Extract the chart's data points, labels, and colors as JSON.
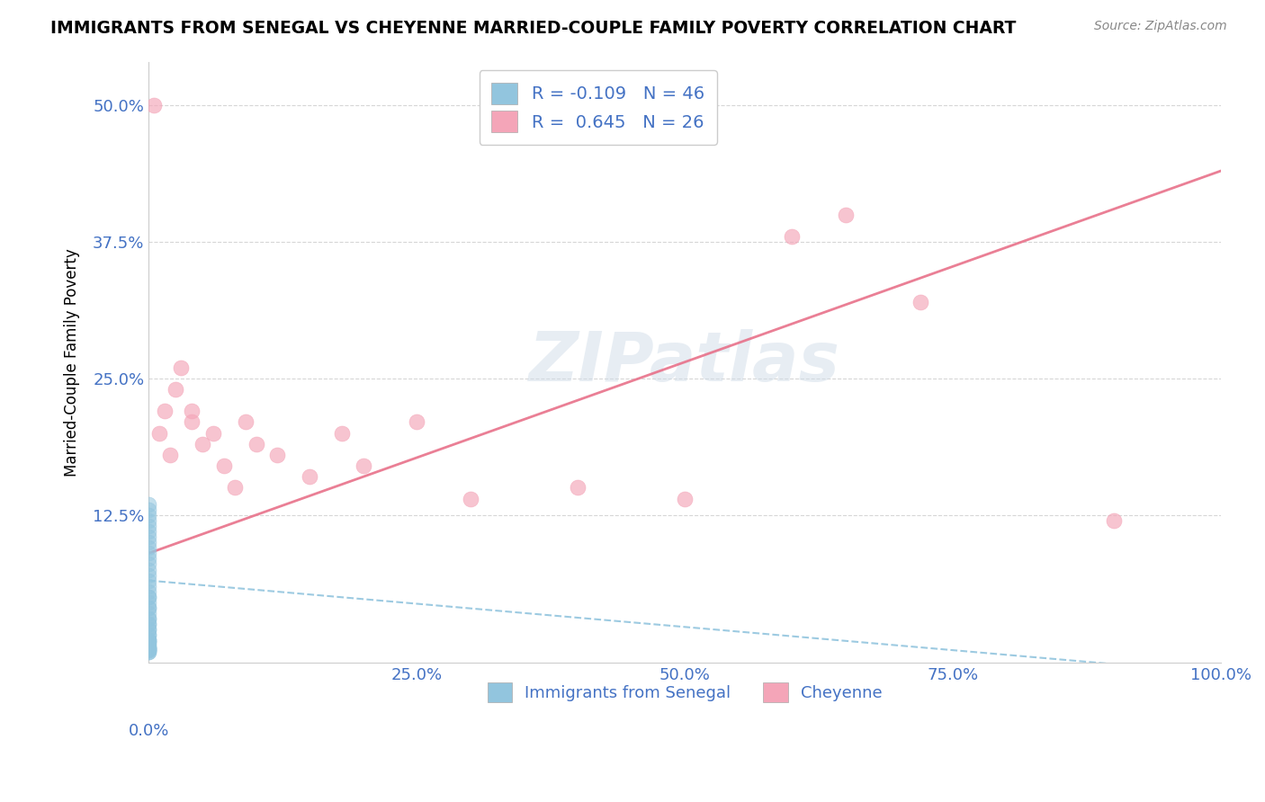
{
  "title": "IMMIGRANTS FROM SENEGAL VS CHEYENNE MARRIED-COUPLE FAMILY POVERTY CORRELATION CHART",
  "source": "Source: ZipAtlas.com",
  "ylabel": "Married-Couple Family Poverty",
  "legend_label1": "Immigrants from Senegal",
  "legend_label2": "Cheyenne",
  "R1": -0.109,
  "N1": 46,
  "R2": 0.645,
  "N2": 26,
  "color1": "#92c5de",
  "color2": "#f4a5b8",
  "trendline1_color": "#92c5de",
  "trendline2_color": "#e8718a",
  "xlim": [
    0.0,
    1.0
  ],
  "ylim": [
    -0.01,
    0.54
  ],
  "xtick_positions": [
    0.0,
    0.25,
    0.5,
    0.75,
    1.0
  ],
  "xtick_labels": [
    "0.0%",
    "25.0%",
    "50.0%",
    "75.0%",
    "100.0%"
  ],
  "ytick_positions": [
    0.125,
    0.25,
    0.375,
    0.5
  ],
  "ytick_labels": [
    "12.5%",
    "25.0%",
    "37.5%",
    "50.0%"
  ],
  "watermark": "ZIPatlas",
  "background_color": "#ffffff",
  "senegal_x": [
    0.0,
    0.0,
    0.0,
    0.0,
    0.0,
    0.0,
    0.0,
    0.0,
    0.0,
    0.0,
    0.0,
    0.0,
    0.0,
    0.0,
    0.0,
    0.0,
    0.0,
    0.0,
    0.0,
    0.0,
    0.0,
    0.0,
    0.0,
    0.0,
    0.0,
    0.0,
    0.0,
    0.0,
    0.0,
    0.0,
    0.0,
    0.0,
    0.0,
    0.0,
    0.0,
    0.0,
    0.0,
    0.0,
    0.0,
    0.0,
    0.0,
    0.0,
    0.0,
    0.0,
    0.0,
    0.0
  ],
  "senegal_y": [
    0.135,
    0.13,
    0.125,
    0.12,
    0.115,
    0.11,
    0.105,
    0.1,
    0.095,
    0.09,
    0.085,
    0.08,
    0.075,
    0.07,
    0.065,
    0.06,
    0.055,
    0.05,
    0.05,
    0.045,
    0.04,
    0.04,
    0.035,
    0.03,
    0.03,
    0.025,
    0.025,
    0.02,
    0.02,
    0.015,
    0.015,
    0.01,
    0.01,
    0.01,
    0.008,
    0.008,
    0.005,
    0.005,
    0.003,
    0.003,
    0.002,
    0.002,
    0.001,
    0.001,
    0.0,
    0.0
  ],
  "cheyenne_x": [
    0.005,
    0.01,
    0.015,
    0.02,
    0.025,
    0.03,
    0.04,
    0.04,
    0.05,
    0.06,
    0.07,
    0.08,
    0.09,
    0.1,
    0.12,
    0.15,
    0.18,
    0.2,
    0.25,
    0.3,
    0.4,
    0.5,
    0.6,
    0.65,
    0.72,
    0.9
  ],
  "cheyenne_y": [
    0.5,
    0.2,
    0.22,
    0.18,
    0.24,
    0.26,
    0.21,
    0.22,
    0.19,
    0.2,
    0.17,
    0.15,
    0.21,
    0.19,
    0.18,
    0.16,
    0.2,
    0.17,
    0.21,
    0.14,
    0.15,
    0.14,
    0.38,
    0.4,
    0.32,
    0.12
  ],
  "sen_trendline_x0": 0.0,
  "sen_trendline_y0": 0.065,
  "sen_trendline_x1": 1.0,
  "sen_trendline_y1": -0.02,
  "chey_trendline_x0": 0.0,
  "chey_trendline_y0": 0.09,
  "chey_trendline_x1": 1.0,
  "chey_trendline_y1": 0.44
}
